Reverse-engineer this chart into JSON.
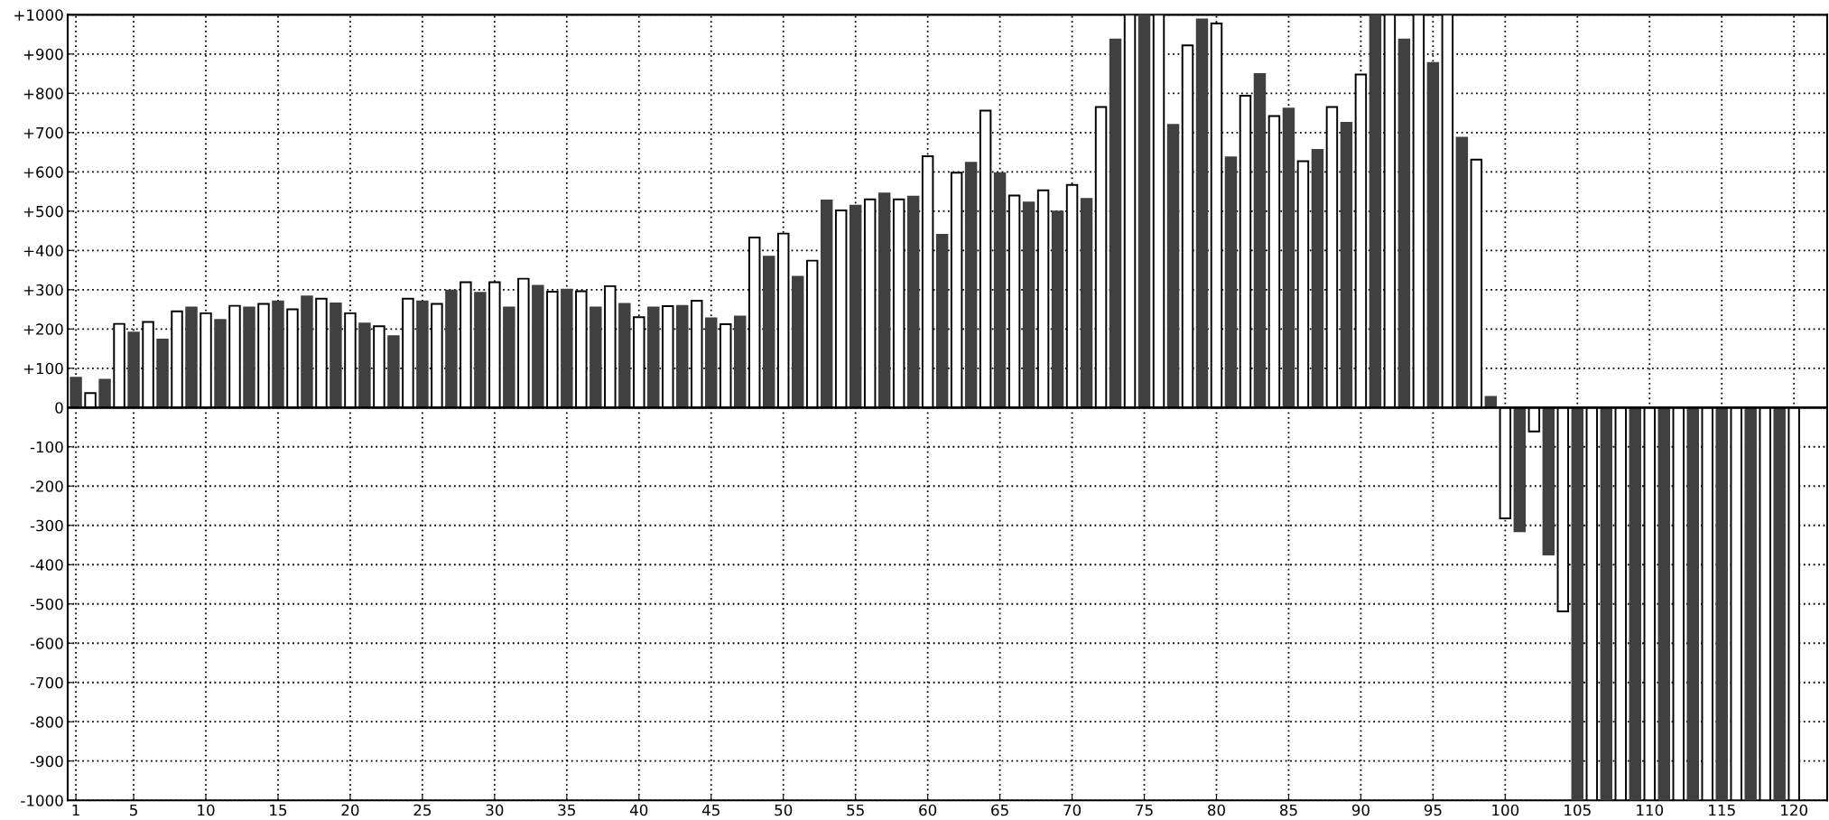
{
  "chart_data": {
    "type": "bar",
    "x": [
      1,
      2,
      3,
      4,
      5,
      6,
      7,
      8,
      9,
      10,
      11,
      12,
      13,
      14,
      15,
      16,
      17,
      18,
      19,
      20,
      21,
      22,
      23,
      24,
      25,
      26,
      27,
      28,
      29,
      30,
      31,
      32,
      33,
      34,
      35,
      36,
      37,
      38,
      39,
      40,
      41,
      42,
      43,
      44,
      45,
      46,
      47,
      48,
      49,
      50,
      51,
      52,
      53,
      54,
      55,
      56,
      57,
      58,
      59,
      60,
      61,
      62,
      63,
      64,
      65,
      66,
      67,
      68,
      69,
      70,
      71,
      72,
      73,
      74,
      75,
      76,
      77,
      78,
      79,
      80,
      81,
      82,
      83,
      84,
      85,
      86,
      87,
      88,
      89,
      90,
      91,
      92,
      93,
      94,
      95,
      96,
      97,
      98,
      99,
      100,
      101,
      102,
      103,
      104,
      105,
      106,
      107,
      108,
      109,
      110,
      111,
      112,
      113,
      114,
      115,
      116,
      117,
      118,
      119,
      120
    ],
    "values": [
      76,
      37,
      71,
      213,
      191,
      218,
      173,
      245,
      255,
      240,
      223,
      259,
      255,
      264,
      270,
      250,
      283,
      277,
      265,
      240,
      214,
      207,
      182,
      277,
      270,
      264,
      298,
      319,
      292,
      319,
      255,
      328,
      310,
      295,
      300,
      296,
      255,
      309,
      264,
      230,
      255,
      258,
      259,
      272,
      227,
      212,
      232,
      433,
      384,
      443,
      333,
      374,
      527,
      502,
      514,
      530,
      545,
      530,
      537,
      640,
      440,
      598,
      623,
      756,
      597,
      540,
      522,
      553,
      499,
      567,
      531,
      765,
      937,
      1000,
      1000,
      1000,
      720,
      922,
      988,
      978,
      637,
      794,
      849,
      742,
      761,
      627,
      656,
      765,
      725,
      848,
      1000,
      1000,
      937,
      1000,
      877,
      1000,
      687,
      631,
      27,
      -282,
      -315,
      -61,
      -374,
      -519,
      -1000,
      -1000,
      -1000,
      -1000,
      -1000,
      -1000,
      -1000,
      -1000,
      -1000,
      -1000,
      -1000,
      -1000,
      -1000,
      -1000,
      -1000,
      -1000
    ],
    "colors": [
      "#404040",
      "#ffffff",
      "#404040",
      "#ffffff",
      "#404040",
      "#ffffff",
      "#404040",
      "#ffffff",
      "#404040",
      "#ffffff",
      "#404040",
      "#ffffff",
      "#404040",
      "#ffffff",
      "#404040",
      "#ffffff",
      "#404040",
      "#ffffff",
      "#404040",
      "#ffffff",
      "#404040",
      "#ffffff",
      "#404040",
      "#ffffff",
      "#404040",
      "#ffffff",
      "#404040",
      "#ffffff",
      "#404040",
      "#ffffff",
      "#404040",
      "#ffffff",
      "#404040",
      "#ffffff",
      "#404040",
      "#ffffff",
      "#404040",
      "#ffffff",
      "#404040",
      "#ffffff",
      "#404040",
      "#ffffff",
      "#404040",
      "#ffffff",
      "#404040",
      "#ffffff",
      "#404040",
      "#ffffff",
      "#404040",
      "#ffffff",
      "#404040",
      "#ffffff",
      "#404040",
      "#ffffff",
      "#404040",
      "#ffffff",
      "#404040",
      "#ffffff",
      "#404040",
      "#ffffff",
      "#404040",
      "#ffffff",
      "#404040",
      "#ffffff",
      "#404040",
      "#ffffff",
      "#404040",
      "#ffffff",
      "#404040",
      "#ffffff",
      "#404040",
      "#ffffff",
      "#404040",
      "#ffffff",
      "#404040",
      "#ffffff",
      "#404040",
      "#ffffff",
      "#404040",
      "#ffffff",
      "#404040",
      "#ffffff",
      "#404040",
      "#ffffff",
      "#404040",
      "#ffffff",
      "#404040",
      "#ffffff",
      "#404040",
      "#ffffff",
      "#404040",
      "#ffffff",
      "#404040",
      "#ffffff",
      "#404040",
      "#ffffff",
      "#404040",
      "#ffffff",
      "#404040",
      "#ffffff",
      "#404040",
      "#ffffff",
      "#404040",
      "#ffffff",
      "#404040",
      "#ffffff",
      "#404040",
      "#ffffff",
      "#404040",
      "#ffffff",
      "#404040",
      "#ffffff",
      "#404040",
      "#ffffff",
      "#404040",
      "#ffffff",
      "#404040",
      "#ffffff",
      "#404040",
      "#ffffff"
    ],
    "xlim": [
      0.43,
      122.3
    ],
    "xticks": [
      1,
      5,
      10,
      15,
      20,
      25,
      30,
      35,
      40,
      45,
      50,
      55,
      60,
      65,
      70,
      75,
      80,
      85,
      90,
      95,
      100,
      105,
      110,
      115,
      120
    ],
    "ylim": [
      -1000,
      1000
    ],
    "yticks": [
      {
        "value": -1000,
        "label": "-1000"
      },
      {
        "value": -900,
        "label": "-900"
      },
      {
        "value": -800,
        "label": "-800"
      },
      {
        "value": -700,
        "label": "-700"
      },
      {
        "value": -600,
        "label": "-600"
      },
      {
        "value": -500,
        "label": "-500"
      },
      {
        "value": -400,
        "label": "-400"
      },
      {
        "value": -300,
        "label": "-300"
      },
      {
        "value": -200,
        "label": "-200"
      },
      {
        "value": -100,
        "label": "-100"
      },
      0,
      {
        "value": 100,
        "label": "+100"
      },
      {
        "value": 200,
        "label": "+200"
      },
      {
        "value": 300,
        "label": "+300"
      },
      {
        "value": 400,
        "label": "+400"
      },
      {
        "value": 500,
        "label": "+500"
      },
      {
        "value": 600,
        "label": "+600"
      },
      {
        "value": 700,
        "label": "+700"
      },
      {
        "value": 800,
        "label": "+800"
      },
      {
        "value": 900,
        "label": "+900"
      },
      {
        "value": 1000,
        "label": "+1000"
      }
    ],
    "ref_lines": [
      {
        "axis": "y",
        "value": 0,
        "color": "#000000",
        "line_style": "solid"
      }
    ],
    "grid": true
  }
}
